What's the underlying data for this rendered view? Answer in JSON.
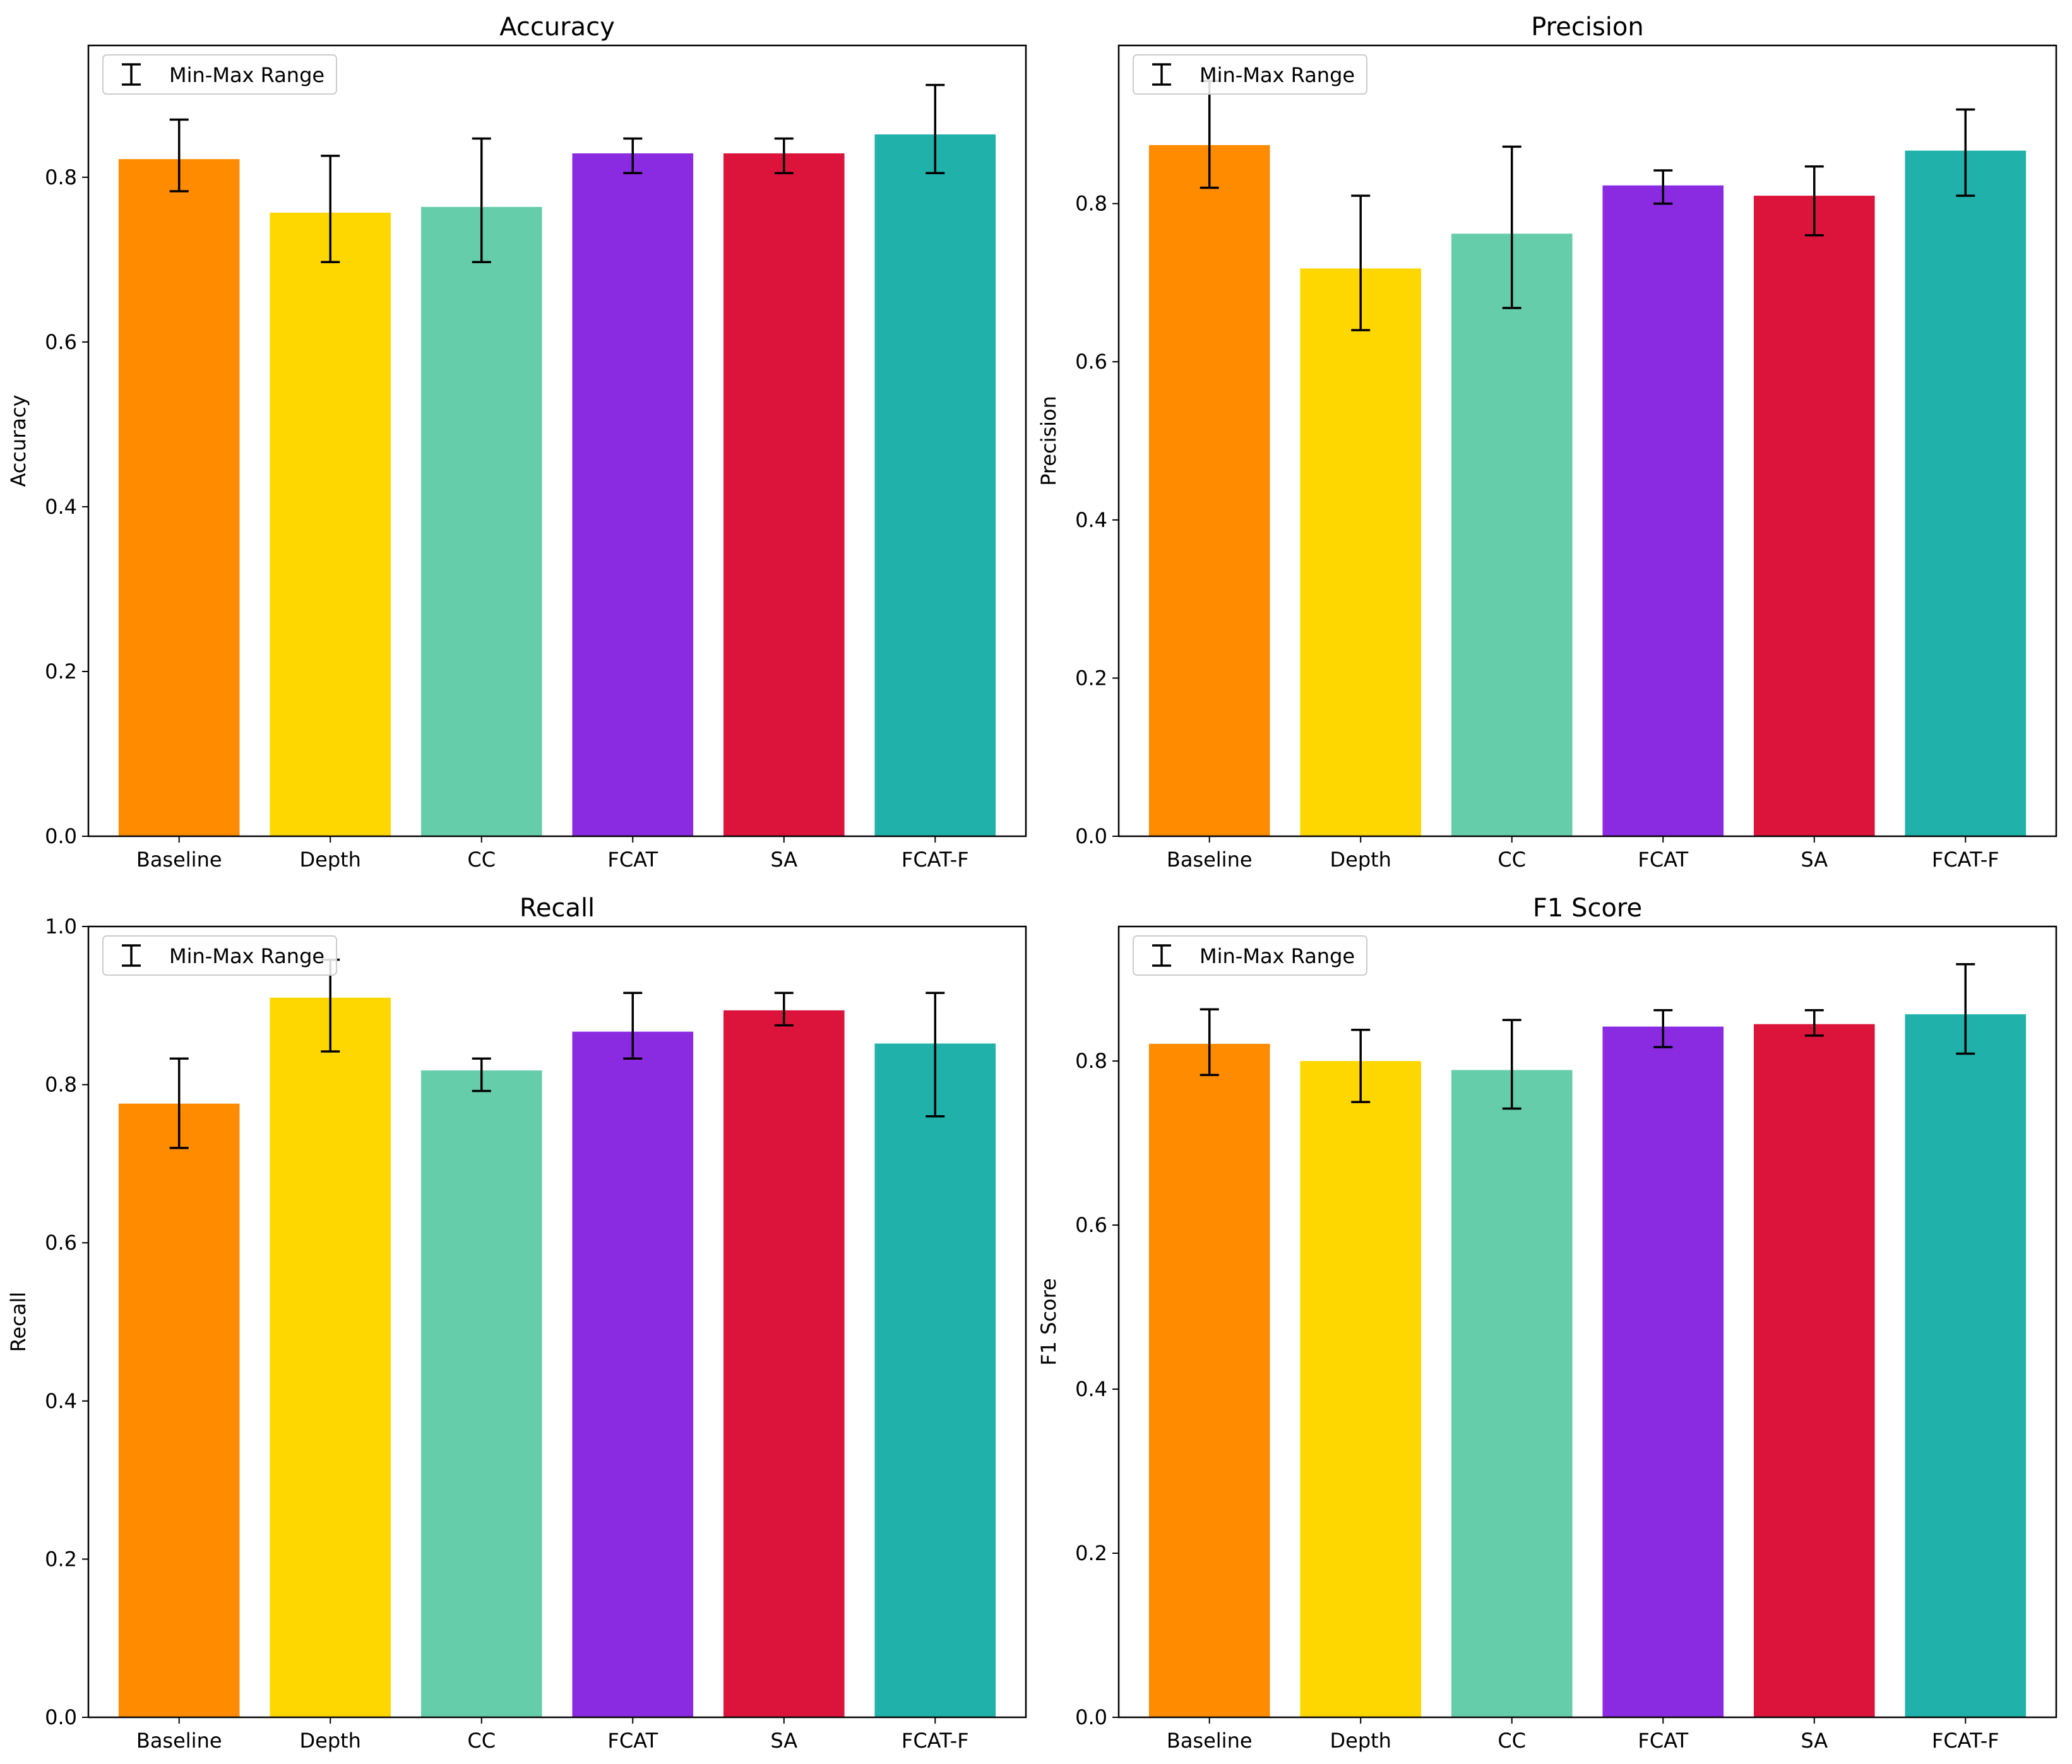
{
  "chart_data": [
    {
      "type": "bar",
      "title": "Accuracy",
      "ylabel": "Accuracy",
      "xlabel": "",
      "ylim": [
        0,
        0.96
      ],
      "yticks": [
        "0.0",
        "0.2",
        "0.4",
        "0.6",
        "0.8"
      ],
      "categories": [
        "Baseline",
        "Depth",
        "CC",
        "FCAT",
        "SA",
        "FCAT-F"
      ],
      "values": [
        0.822,
        0.757,
        0.764,
        0.829,
        0.829,
        0.852
      ],
      "err_min": [
        0.783,
        0.697,
        0.697,
        0.805,
        0.805,
        0.805
      ],
      "err_max": [
        0.87,
        0.826,
        0.847,
        0.847,
        0.847,
        0.912
      ],
      "legend": "Min-Max Range",
      "legend_position": "top-left"
    },
    {
      "type": "bar",
      "title": "Precision",
      "ylabel": "Precision",
      "xlabel": "",
      "ylim": [
        0,
        1.0
      ],
      "yticks": [
        "0.0",
        "0.2",
        "0.4",
        "0.6",
        "0.8"
      ],
      "categories": [
        "Baseline",
        "Depth",
        "CC",
        "FCAT",
        "SA",
        "FCAT-F"
      ],
      "values": [
        0.874,
        0.718,
        0.762,
        0.823,
        0.81,
        0.867
      ],
      "err_min": [
        0.82,
        0.64,
        0.668,
        0.8,
        0.76,
        0.81
      ],
      "err_max": [
        0.955,
        0.81,
        0.872,
        0.842,
        0.847,
        0.919
      ],
      "legend": "Min-Max Range",
      "legend_position": "top-left"
    },
    {
      "type": "bar",
      "title": "Recall",
      "ylabel": "Recall",
      "xlabel": "",
      "ylim": [
        0,
        1.0
      ],
      "yticks": [
        "0.0",
        "0.2",
        "0.4",
        "0.6",
        "0.8",
        "1.0"
      ],
      "categories": [
        "Baseline",
        "Depth",
        "CC",
        "FCAT",
        "SA",
        "FCAT-F"
      ],
      "values": [
        0.776,
        0.91,
        0.818,
        0.867,
        0.894,
        0.852
      ],
      "err_min": [
        0.72,
        0.842,
        0.792,
        0.833,
        0.875,
        0.76
      ],
      "err_max": [
        0.833,
        0.958,
        0.833,
        0.916,
        0.916,
        0.916
      ],
      "legend": "Min-Max Range",
      "legend_position": "top-left"
    },
    {
      "type": "bar",
      "title": "F1 Score",
      "ylabel": "F1 Score",
      "xlabel": "",
      "ylim": [
        0,
        0.964
      ],
      "yticks": [
        "0.0",
        "0.2",
        "0.4",
        "0.6",
        "0.8"
      ],
      "categories": [
        "Baseline",
        "Depth",
        "CC",
        "FCAT",
        "SA",
        "FCAT-F"
      ],
      "values": [
        0.821,
        0.8,
        0.789,
        0.842,
        0.845,
        0.857
      ],
      "err_min": [
        0.783,
        0.75,
        0.742,
        0.817,
        0.831,
        0.809
      ],
      "err_max": [
        0.863,
        0.838,
        0.85,
        0.862,
        0.862,
        0.918
      ],
      "legend": "Min-Max Range",
      "legend_position": "top-left"
    }
  ],
  "colors": {
    "bars": [
      "#ff8c00",
      "#ffd700",
      "#66cdaa",
      "#8a2be2",
      "#dc143c",
      "#20b2aa"
    ],
    "errorbar": "#000000",
    "axes": "#000000",
    "background": "#ffffff"
  }
}
